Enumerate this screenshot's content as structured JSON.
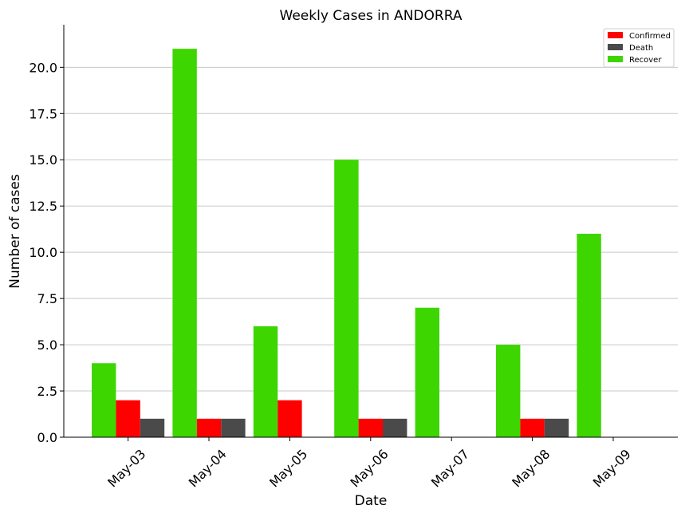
{
  "chart_data": {
    "type": "bar",
    "title": "Weekly Cases in ANDORRA",
    "xlabel": "Date",
    "ylabel": "Number of cases",
    "categories": [
      "May-03",
      "May-04",
      "May-05",
      "May-06",
      "May-07",
      "May-08",
      "May-09"
    ],
    "series": [
      {
        "name": "Recover",
        "color": "#3dd600",
        "values": [
          4,
          21,
          6,
          15,
          7,
          5,
          11
        ]
      },
      {
        "name": "Confirmed",
        "color": "#ff0000",
        "values": [
          2,
          1,
          2,
          1,
          0,
          1,
          0
        ]
      },
      {
        "name": "Death",
        "color": "#4a4a4a",
        "values": [
          1,
          1,
          0,
          1,
          0,
          1,
          0
        ]
      }
    ],
    "legend_order": [
      "Confirmed",
      "Death",
      "Recover"
    ],
    "legend_position": "top-right",
    "ylim": [
      0,
      22.3
    ],
    "yticks": [
      0,
      2.5,
      5,
      7.5,
      10,
      12.5,
      15,
      17.5,
      20
    ],
    "ytick_labels": [
      "0.0",
      "2.5",
      "5.0",
      "7.5",
      "10.0",
      "12.5",
      "15.0",
      "17.5",
      "20.0"
    ],
    "grid": "y"
  }
}
